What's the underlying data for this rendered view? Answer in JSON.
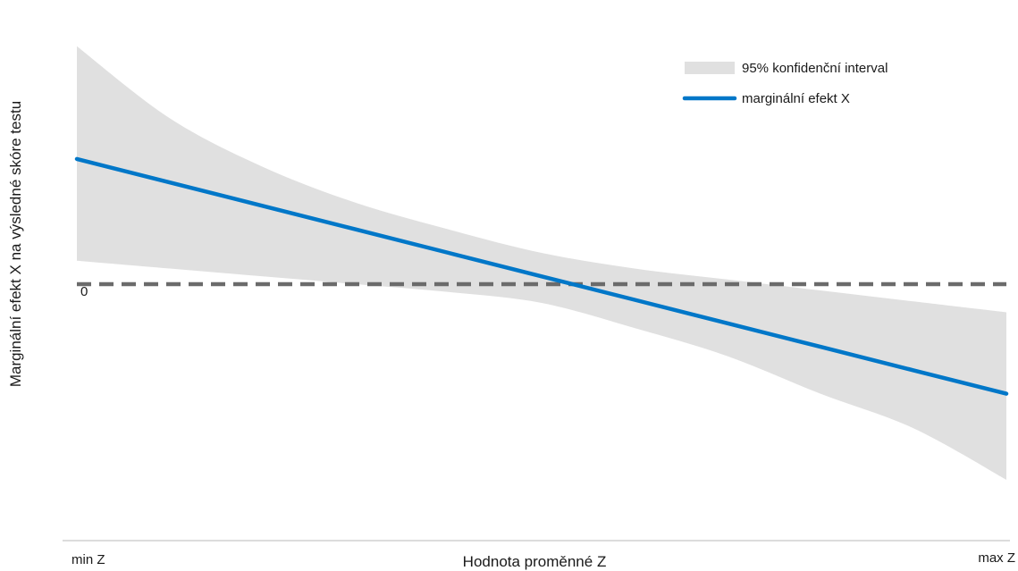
{
  "chart_data": {
    "type": "line",
    "title": "",
    "xlabel": "Hodnota proměnné Z",
    "ylabel": "Marginální efekt X na výsledné skóre testu",
    "x_tick_labels": {
      "min": "min Z",
      "max": "max Z"
    },
    "xlim": [
      0,
      1
    ],
    "ylim": [
      -1.53,
      1.77
    ],
    "reference_line": {
      "y": 0,
      "label": "0",
      "style": "dashed",
      "color": "#6b6b6b"
    },
    "x": [
      0,
      0.1,
      0.2,
      0.3,
      0.4,
      0.5,
      0.6,
      0.7,
      0.8,
      0.9,
      1.0
    ],
    "series": [
      {
        "name": "marginální efekt X",
        "kind": "line",
        "color": "#0077c8",
        "values": [
          0.8,
          0.65,
          0.5,
          0.35,
          0.2,
          0.05,
          -0.1,
          -0.25,
          -0.4,
          -0.55,
          -0.7
        ]
      },
      {
        "name": "95% konfidenční interval",
        "kind": "band",
        "color": "#e0e0e0",
        "upper": [
          1.52,
          1.06,
          0.75,
          0.52,
          0.35,
          0.2,
          0.1,
          0.03,
          -0.04,
          -0.11,
          -0.18
        ],
        "lower": [
          0.15,
          0.1,
          0.05,
          0.0,
          -0.05,
          -0.12,
          -0.28,
          -0.46,
          -0.7,
          -0.92,
          -1.25
        ]
      }
    ],
    "legend": {
      "position": "top-right",
      "items": [
        "95% konfidenční interval",
        "marginální efekt X"
      ]
    },
    "grid": false
  }
}
